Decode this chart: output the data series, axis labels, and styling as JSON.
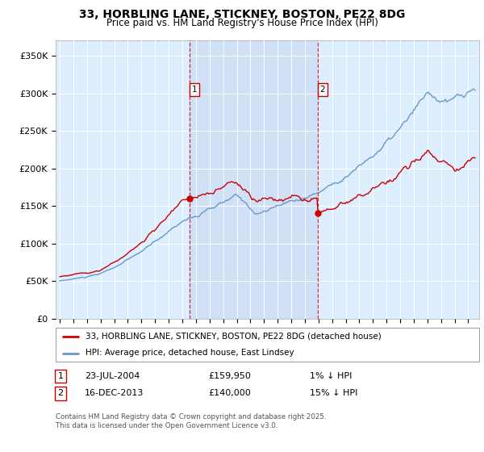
{
  "title": "33, HORBLING LANE, STICKNEY, BOSTON, PE22 8DG",
  "subtitle": "Price paid vs. HM Land Registry's House Price Index (HPI)",
  "ylabel_ticks": [
    "£0",
    "£50K",
    "£100K",
    "£150K",
    "£200K",
    "£250K",
    "£300K",
    "£350K"
  ],
  "ytick_values": [
    0,
    50000,
    100000,
    150000,
    200000,
    250000,
    300000,
    350000
  ],
  "ylim": [
    0,
    370000
  ],
  "xlim_start": 1994.7,
  "xlim_end": 2025.8,
  "line1_color": "#cc0000",
  "line2_color": "#6699cc",
  "legend_label1": "33, HORBLING LANE, STICKNEY, BOSTON, PE22 8DG (detached house)",
  "legend_label2": "HPI: Average price, detached house, East Lindsey",
  "marker1_date": 2004.55,
  "marker1_price": 159950,
  "marker1_label": "1",
  "marker2_date": 2013.96,
  "marker2_price": 140000,
  "marker2_label": "2",
  "footer": "Contains HM Land Registry data © Crown copyright and database right 2025.\nThis data is licensed under the Open Government Licence v3.0.",
  "plot_bg_color": "#ddeeff",
  "fig_bg_color": "#ffffff",
  "shade_color": "#c8d8f0"
}
